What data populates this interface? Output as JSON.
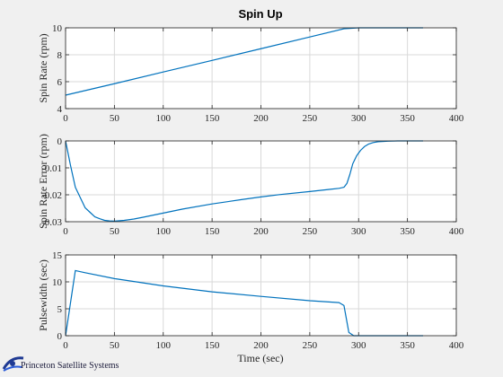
{
  "figure": {
    "title": "Spin Up",
    "xlabel": "Time (sec)",
    "logo_text": "Princeton Satellite Systems"
  },
  "colors": {
    "line": "#0072bd",
    "grid": "#d9d9d9",
    "axes": "#262626",
    "background": "#f0f0f0"
  },
  "chart_data": [
    {
      "type": "line",
      "ylabel": "Spin Rate (rpm)",
      "xlim": [
        0,
        400
      ],
      "ylim": [
        4,
        10
      ],
      "xticks": [
        0,
        50,
        100,
        150,
        200,
        250,
        300,
        350,
        400
      ],
      "yticks": [
        4,
        6,
        8,
        10
      ],
      "grid": true,
      "x": [
        0,
        50,
        100,
        150,
        200,
        250,
        285,
        300,
        330,
        366
      ],
      "y": [
        5.0,
        5.85,
        6.72,
        7.58,
        8.45,
        9.32,
        9.93,
        10.0,
        10.0,
        10.0
      ]
    },
    {
      "type": "line",
      "ylabel": "Spin Rate Error (rpm)",
      "xlim": [
        0,
        400
      ],
      "ylim": [
        -0.03,
        0
      ],
      "xticks": [
        0,
        50,
        100,
        150,
        200,
        250,
        300,
        350,
        400
      ],
      "yticks": [
        -0.03,
        -0.02,
        -0.01,
        0
      ],
      "grid": true,
      "x": [
        0,
        5,
        10,
        15,
        20,
        25,
        30,
        35,
        40,
        45,
        50,
        60,
        70,
        80,
        100,
        120,
        150,
        180,
        200,
        220,
        250,
        270,
        280,
        285,
        288,
        291,
        294,
        298,
        302,
        306,
        310,
        315,
        320,
        330,
        340,
        350,
        366
      ],
      "y": [
        0,
        -0.009,
        -0.0172,
        -0.021,
        -0.0248,
        -0.0265,
        -0.0282,
        -0.0289,
        -0.0295,
        -0.0297,
        -0.0298,
        -0.0295,
        -0.029,
        -0.0283,
        -0.0268,
        -0.0253,
        -0.0234,
        -0.0218,
        -0.0208,
        -0.0199,
        -0.0188,
        -0.018,
        -0.0176,
        -0.0172,
        -0.0158,
        -0.0125,
        -0.0085,
        -0.0055,
        -0.0035,
        -0.0021,
        -0.0012,
        -0.0006,
        -0.0003,
        -0.0001,
        0,
        0,
        0
      ]
    },
    {
      "type": "line",
      "ylabel": "Pulsewidth (sec)",
      "xlim": [
        0,
        400
      ],
      "ylim": [
        0,
        15
      ],
      "xticks": [
        0,
        50,
        100,
        150,
        200,
        250,
        300,
        350,
        400
      ],
      "yticks": [
        0,
        5,
        10,
        15
      ],
      "grid": true,
      "x": [
        0,
        10,
        20,
        50,
        100,
        150,
        200,
        250,
        280,
        285,
        290,
        295,
        300,
        366
      ],
      "y": [
        0,
        12.1,
        11.7,
        10.6,
        9.25,
        8.15,
        7.3,
        6.5,
        6.15,
        5.6,
        0.6,
        0,
        0,
        0
      ]
    }
  ]
}
